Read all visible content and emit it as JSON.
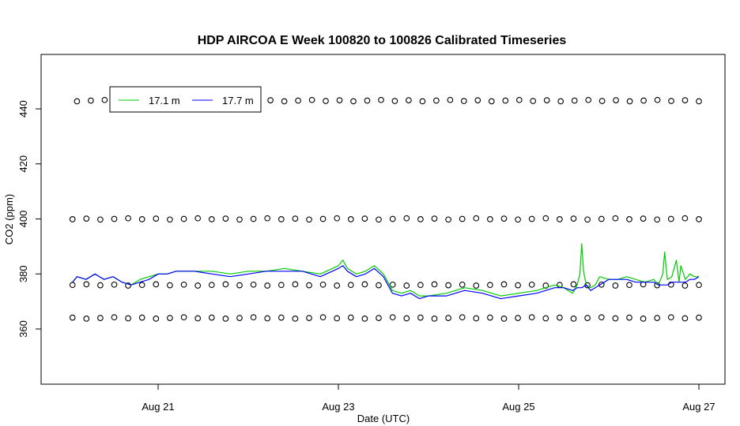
{
  "chart_data": {
    "type": "line",
    "title": "HDP AIRCOA E  Week 100820 to 100826  Calibrated Timeseries",
    "xlabel": "Date (UTC)",
    "ylabel": "CO2 (ppm)",
    "xlim": [
      20.0,
      27.0
    ],
    "ylim": [
      367.5,
      442.5
    ],
    "x_ticks": [
      {
        "value": 21,
        "label": "Aug 21"
      },
      {
        "value": 23,
        "label": "Aug 23"
      },
      {
        "value": 25,
        "label": "Aug 25"
      },
      {
        "value": 27,
        "label": "Aug 27"
      }
    ],
    "y_ticks": [
      {
        "value": 360,
        "label": "360"
      },
      {
        "value": 380,
        "label": "380"
      },
      {
        "value": 400,
        "label": "400"
      },
      {
        "value": 420,
        "label": "420"
      },
      {
        "value": 440,
        "label": "440"
      }
    ],
    "legend": {
      "position": "top-left"
    },
    "series": [
      {
        "name": "17.1 m",
        "color": "#00cc00",
        "x": [
          20.05,
          20.1,
          20.2,
          20.3,
          20.4,
          20.5,
          20.6,
          20.7,
          20.8,
          20.9,
          21.0,
          21.1,
          21.2,
          21.4,
          21.6,
          21.8,
          22.0,
          22.2,
          22.4,
          22.6,
          22.8,
          23.0,
          23.05,
          23.1,
          23.2,
          23.3,
          23.4,
          23.5,
          23.55,
          23.6,
          23.7,
          23.8,
          23.9,
          24.0,
          24.2,
          24.4,
          24.6,
          24.8,
          25.0,
          25.2,
          25.4,
          25.5,
          25.6,
          25.65,
          25.68,
          25.7,
          25.72,
          25.75,
          25.8,
          25.85,
          25.9,
          26.0,
          26.1,
          26.2,
          26.3,
          26.4,
          26.5,
          26.55,
          26.6,
          26.62,
          26.65,
          26.7,
          26.75,
          26.78,
          26.8,
          26.85,
          26.9,
          26.95,
          27.0
        ],
        "y": [
          377,
          379,
          378,
          380,
          378,
          379,
          377,
          376,
          378,
          379,
          380,
          380,
          381,
          381,
          381,
          380,
          381,
          381,
          382,
          381,
          380,
          383,
          385,
          382,
          380,
          381,
          383,
          380,
          377,
          374,
          373,
          374,
          372,
          372,
          373,
          375,
          374,
          372,
          373,
          374,
          376,
          375,
          373,
          376,
          380,
          391,
          381,
          376,
          375,
          376,
          379,
          378,
          378,
          379,
          378,
          377,
          378,
          376,
          380,
          388,
          378,
          379,
          385,
          377,
          383,
          378,
          380,
          379,
          379
        ]
      },
      {
        "name": "17.7 m",
        "color": "#0000ff",
        "x": [
          20.05,
          20.1,
          20.2,
          20.3,
          20.4,
          20.5,
          20.6,
          20.7,
          20.8,
          20.9,
          21.0,
          21.1,
          21.2,
          21.4,
          21.6,
          21.8,
          22.0,
          22.2,
          22.4,
          22.6,
          22.8,
          23.0,
          23.05,
          23.1,
          23.2,
          23.3,
          23.4,
          23.5,
          23.55,
          23.6,
          23.7,
          23.8,
          23.9,
          24.0,
          24.2,
          24.4,
          24.6,
          24.8,
          25.0,
          25.2,
          25.4,
          25.5,
          25.6,
          25.65,
          25.7,
          25.75,
          25.8,
          25.85,
          25.9,
          26.0,
          26.1,
          26.2,
          26.3,
          26.4,
          26.5,
          26.55,
          26.6,
          26.65,
          26.7,
          26.75,
          26.8,
          26.85,
          26.9,
          26.95,
          27.0
        ],
        "y": [
          377,
          379,
          378,
          380,
          378,
          379,
          377,
          376,
          377,
          378,
          380,
          380,
          381,
          381,
          380,
          379,
          380,
          381,
          381,
          381,
          379,
          382,
          383,
          381,
          379,
          380,
          382,
          379,
          376,
          373,
          372,
          373,
          371,
          372,
          372,
          374,
          373,
          371,
          372,
          373,
          375,
          375,
          374,
          375,
          375,
          376,
          374,
          375,
          376,
          378,
          378,
          378,
          377,
          377,
          377,
          376,
          376,
          376,
          377,
          377,
          377,
          377,
          378,
          378,
          379
        ]
      }
    ],
    "reference_rows": [
      {
        "y": 443,
        "x_start": 20.1,
        "x_end": 27.0,
        "count": 46
      },
      {
        "y": 400,
        "x_start": 20.05,
        "x_end": 27.0,
        "count": 46
      },
      {
        "y": 376,
        "x_start": 20.05,
        "x_end": 27.0,
        "count": 46
      },
      {
        "y": 364,
        "x_start": 20.05,
        "x_end": 27.0,
        "count": 46
      }
    ],
    "legend_entries": [
      "17.1 m",
      "17.7 m"
    ]
  }
}
